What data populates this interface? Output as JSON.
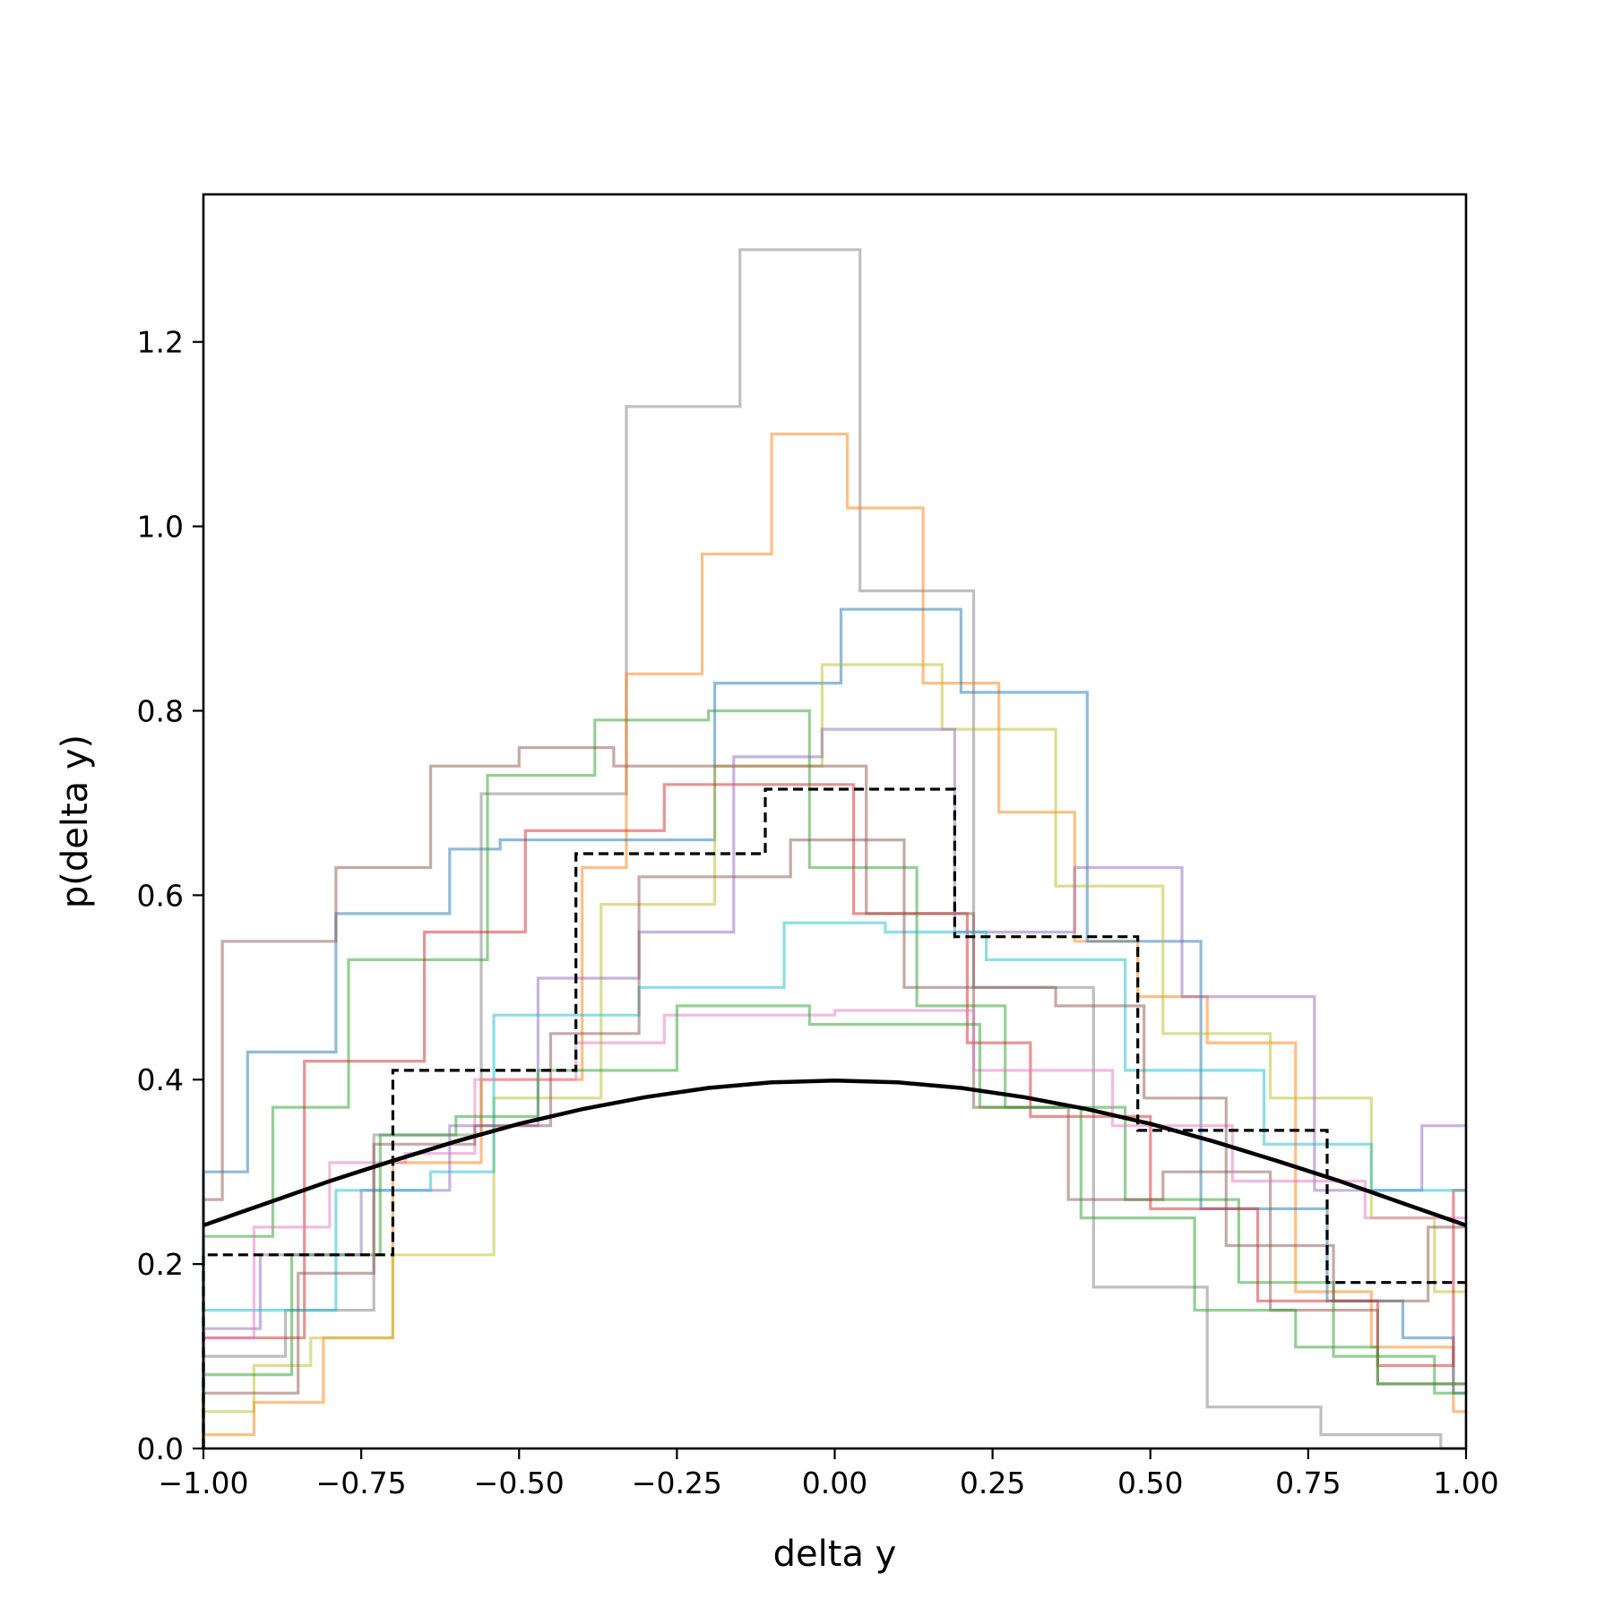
{
  "chart_data": {
    "type": "line",
    "title": "",
    "xlabel": "delta y",
    "ylabel": "p(delta y)",
    "xlim": [
      -1.0,
      1.0
    ],
    "ylim": [
      0.0,
      1.36
    ],
    "xticks": [
      "−1.00",
      "−0.75",
      "−0.50",
      "−0.25",
      "0.00",
      "0.25",
      "0.50",
      "0.75",
      "1.00"
    ],
    "yticks": [
      "0.0",
      "0.2",
      "0.4",
      "0.6",
      "0.8",
      "1.0",
      "1.2"
    ],
    "grid": false,
    "legend": "none",
    "reference_curve": {
      "type": "line",
      "color": "#000000",
      "x": [
        -1.0,
        -0.9,
        -0.8,
        -0.7,
        -0.6,
        -0.5,
        -0.4,
        -0.3,
        -0.2,
        -0.1,
        0.0,
        0.1,
        0.2,
        0.3,
        0.4,
        0.5,
        0.6,
        0.7,
        0.8,
        0.9,
        1.0
      ],
      "y": [
        0.242,
        0.266,
        0.29,
        0.312,
        0.333,
        0.352,
        0.368,
        0.381,
        0.391,
        0.397,
        0.399,
        0.397,
        0.391,
        0.381,
        0.368,
        0.352,
        0.333,
        0.312,
        0.29,
        0.266,
        0.242
      ]
    },
    "reference_histogram": {
      "type": "step",
      "color": "#000000",
      "style": "dashed",
      "edges": [
        -1.0,
        -0.7,
        -0.41,
        -0.11,
        0.19,
        0.48,
        0.78,
        1.0
      ],
      "values": [
        0.21,
        0.41,
        0.645,
        0.715,
        0.555,
        0.345,
        0.18
      ]
    },
    "series": [
      {
        "color": "#7f7f7f",
        "edges": [
          -1.0,
          -0.87,
          -0.73,
          -0.56,
          -0.53,
          -0.33,
          -0.15,
          0.04,
          0.22,
          0.41,
          0.59,
          0.77,
          0.96,
          1.0
        ],
        "values": [
          0.1,
          0.15,
          0.34,
          0.71,
          0.71,
          1.13,
          1.3,
          0.93,
          0.5,
          0.175,
          0.045,
          0.015,
          0.0
        ]
      },
      {
        "color": "#ff7f0e",
        "edges": [
          -1.0,
          -0.92,
          -0.85,
          -0.81,
          -0.7,
          -0.56,
          -0.4,
          -0.33,
          -0.21,
          -0.1,
          0.02,
          0.14,
          0.26,
          0.38,
          0.48,
          0.59,
          0.73,
          0.85,
          0.98,
          1.0
        ],
        "values": [
          0.015,
          0.05,
          0.05,
          0.12,
          0.31,
          0.4,
          0.63,
          0.84,
          0.97,
          1.1,
          1.02,
          0.83,
          0.69,
          0.55,
          0.49,
          0.44,
          0.17,
          0.11,
          0.04
        ]
      },
      {
        "color": "#1f77b4",
        "edges": [
          -1.0,
          -0.93,
          -0.79,
          -0.61,
          -0.53,
          -0.42,
          -0.19,
          0.01,
          0.2,
          0.4,
          0.58,
          0.78,
          0.9,
          0.98,
          1.0
        ],
        "values": [
          0.3,
          0.43,
          0.58,
          0.65,
          0.66,
          0.66,
          0.83,
          0.91,
          0.82,
          0.55,
          0.26,
          0.16,
          0.12,
          0.06
        ]
      },
      {
        "color": "#bcbd22",
        "edges": [
          -1.0,
          -0.92,
          -0.83,
          -0.7,
          -0.54,
          -0.37,
          -0.19,
          -0.02,
          0.17,
          0.35,
          0.52,
          0.69,
          0.85,
          0.95,
          1.0
        ],
        "values": [
          0.04,
          0.09,
          0.12,
          0.21,
          0.38,
          0.59,
          0.74,
          0.85,
          0.78,
          0.61,
          0.45,
          0.38,
          0.25,
          0.17
        ]
      },
      {
        "color": "#2ca02c",
        "edges": [
          -1.0,
          -0.89,
          -0.77,
          -0.55,
          -0.38,
          -0.2,
          -0.04,
          0.13,
          0.27,
          0.46,
          0.64,
          0.79,
          0.95,
          1.0
        ],
        "values": [
          0.23,
          0.37,
          0.53,
          0.73,
          0.79,
          0.8,
          0.63,
          0.48,
          0.37,
          0.27,
          0.18,
          0.1,
          0.06
        ]
      },
      {
        "color": "#d62728",
        "edges": [
          -1.0,
          -0.84,
          -0.65,
          -0.49,
          -0.27,
          -0.12,
          0.03,
          0.21,
          0.31,
          0.5,
          0.67,
          0.86,
          0.98,
          1.0
        ],
        "values": [
          0.12,
          0.42,
          0.56,
          0.67,
          0.72,
          0.72,
          0.58,
          0.44,
          0.36,
          0.26,
          0.16,
          0.09,
          0.28
        ]
      },
      {
        "color": "#8c564b",
        "edges": [
          -1.0,
          -0.97,
          -0.79,
          -0.64,
          -0.5,
          -0.35,
          -0.21,
          0.05,
          0.22,
          0.37,
          0.52,
          0.69,
          0.86,
          1.0
        ],
        "values": [
          0.27,
          0.55,
          0.63,
          0.74,
          0.76,
          0.74,
          0.74,
          0.58,
          0.37,
          0.27,
          0.3,
          0.15,
          0.07
        ]
      },
      {
        "color": "#9467bd",
        "edges": [
          -1.0,
          -0.91,
          -0.75,
          -0.61,
          -0.47,
          -0.31,
          -0.16,
          -0.02,
          0.19,
          0.38,
          0.55,
          0.76,
          0.93,
          1.0
        ],
        "values": [
          0.13,
          0.21,
          0.28,
          0.35,
          0.51,
          0.56,
          0.75,
          0.78,
          0.56,
          0.63,
          0.49,
          0.28,
          0.35
        ]
      },
      {
        "color": "#17becf",
        "edges": [
          -1.0,
          -0.79,
          -0.64,
          -0.54,
          -0.31,
          -0.08,
          0.08,
          0.24,
          0.46,
          0.68,
          0.85,
          1.0
        ],
        "values": [
          0.15,
          0.28,
          0.3,
          0.47,
          0.5,
          0.57,
          0.56,
          0.53,
          0.41,
          0.33,
          0.28
        ]
      },
      {
        "color": "#e377c2",
        "edges": [
          -1.0,
          -0.92,
          -0.8,
          -0.68,
          -0.57,
          -0.41,
          -0.27,
          0.0,
          0.22,
          0.44,
          0.63,
          0.84,
          1.0
        ],
        "values": [
          0.12,
          0.24,
          0.31,
          0.32,
          0.4,
          0.44,
          0.47,
          0.475,
          0.41,
          0.35,
          0.29,
          0.25
        ]
      },
      {
        "color": "#2ca02c",
        "edges": [
          -1.0,
          -0.86,
          -0.72,
          -0.6,
          -0.47,
          -0.25,
          -0.04,
          0.23,
          0.39,
          0.57,
          0.73,
          0.86,
          1.0
        ],
        "values": [
          0.08,
          0.21,
          0.34,
          0.36,
          0.41,
          0.48,
          0.46,
          0.37,
          0.25,
          0.15,
          0.11,
          0.07
        ]
      },
      {
        "color": "#8c564b",
        "edges": [
          -1.0,
          -0.85,
          -0.73,
          -0.57,
          -0.45,
          -0.31,
          -0.07,
          0.11,
          0.35,
          0.49,
          0.62,
          0.79,
          0.94,
          1.0
        ],
        "values": [
          0.06,
          0.19,
          0.33,
          0.35,
          0.45,
          0.62,
          0.66,
          0.5,
          0.48,
          0.38,
          0.22,
          0.16,
          0.24
        ]
      }
    ]
  }
}
